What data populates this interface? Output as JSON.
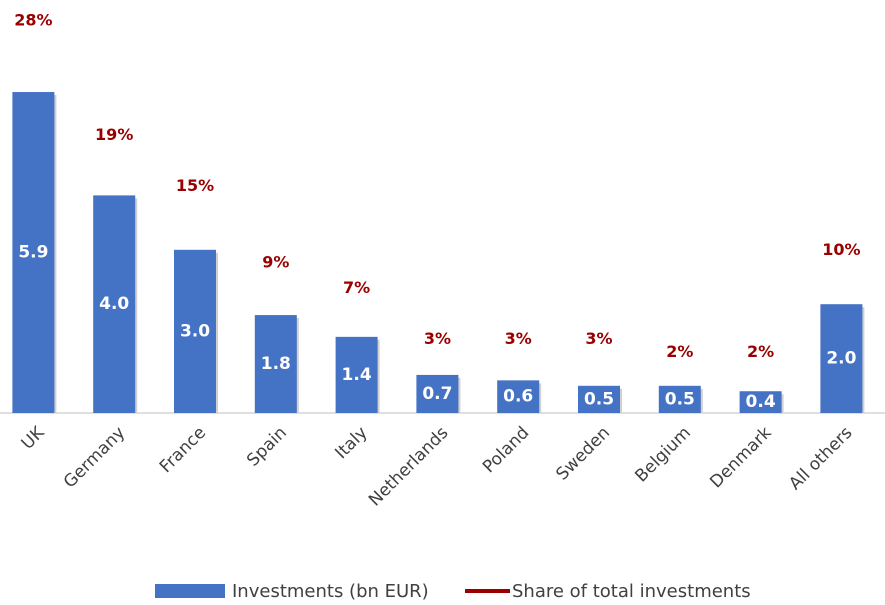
{
  "chart_data": {
    "type": "bar",
    "categories": [
      "UK",
      "Germany",
      "France",
      "Spain",
      "Italy",
      "Netherlands",
      "Poland",
      "Sweden",
      "Belgium",
      "Denmark",
      "All others"
    ],
    "series": [
      {
        "name": "Investments (bn EUR)",
        "color": "#4472c4",
        "type": "bar",
        "values": [
          5.9,
          4.0,
          3.0,
          1.8,
          1.4,
          0.7,
          0.6,
          0.5,
          0.5,
          0.4,
          2.0
        ],
        "value_labels": [
          "5.9",
          "4.0",
          "3.0",
          "1.8",
          "1.4",
          "0.7",
          "0.6",
          "0.5",
          "0.5",
          "0.4",
          "2.0"
        ]
      },
      {
        "name": "Share of total investments",
        "color": "#990000",
        "type": "line",
        "axis": "y2",
        "values": [
          28,
          19,
          15,
          9,
          7,
          3,
          3,
          3,
          2,
          2,
          10
        ],
        "value_labels": [
          "28%",
          "19%",
          "15%",
          "9%",
          "7%",
          "3%",
          "3%",
          "3%",
          "2%",
          "2%",
          "10%"
        ]
      }
    ],
    "ylim": [
      0,
      7.5
    ],
    "y2lim": [
      -1.5,
      30.5
    ],
    "legend": "bottom"
  }
}
